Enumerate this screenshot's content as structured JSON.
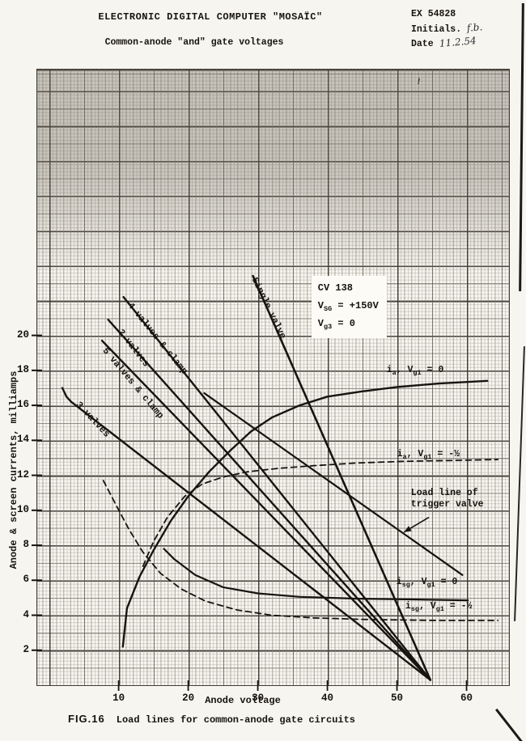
{
  "header": {
    "title": "ELECTRONIC DIGITAL COMPUTER \"MOSAÏC\"",
    "subtitle": "Common-anode \"and\" gate voltages",
    "ref_number": "EX 54828",
    "initials_label": "Initials.",
    "initials_value": "f.b.",
    "date_label": "Date",
    "date_value": "11.2.54"
  },
  "caption": {
    "fig": "FIG.16",
    "text": "Load lines for common-anode gate circuits"
  },
  "artifacts": {
    "ink_mark": "!"
  },
  "chart_data": {
    "type": "line",
    "title": "Load lines for common-anode gate circuits",
    "xlabel": "Anode voltage",
    "ylabel": "Anode & screen currents, milliamps",
    "x_range": [
      -1.7,
      66.1
    ],
    "y_range": [
      0,
      35.2
    ],
    "x_ticks": [
      10,
      20,
      30,
      40,
      50,
      60
    ],
    "y_ticks": [
      2,
      4,
      6,
      8,
      10,
      12,
      14,
      16,
      18,
      20
    ],
    "grid": "fine graph paper, bold every 10 V and 2 mA",
    "legend_position": "labels drawn on curves",
    "ink_color": "#17140f",
    "load_line_convergence_point": [
      54.8,
      0.3
    ],
    "series": [
      {
        "id": "single-valve",
        "label": "Single valve",
        "style": "solid",
        "width": 2.6,
        "points": [
          [
            29.3,
            23.4
          ],
          [
            54.8,
            0.3
          ]
        ]
      },
      {
        "id": "four-valves-clamp",
        "label": "4 valves & clamp",
        "style": "solid",
        "width": 2.4,
        "points": [
          [
            10.7,
            22.2
          ],
          [
            54.8,
            0.3
          ]
        ]
      },
      {
        "id": "two-valves",
        "label": "2 valves",
        "style": "solid",
        "width": 2.4,
        "points": [
          [
            8.5,
            20.9
          ],
          [
            54.8,
            0.3
          ]
        ]
      },
      {
        "id": "five-valves-clamp",
        "label": "5 valves & clamp",
        "style": "solid",
        "width": 2.4,
        "points": [
          [
            7.6,
            19.7
          ],
          [
            54.8,
            0.3
          ]
        ]
      },
      {
        "id": "three-valves",
        "label": "3 valves",
        "style": "solid",
        "width": 2.4,
        "points": [
          [
            1.9,
            17.0
          ],
          [
            2.5,
            16.5
          ],
          [
            3.2,
            16.2
          ],
          [
            54.8,
            0.3
          ]
        ]
      },
      {
        "id": "trigger-load-line",
        "label": "Load line of trigger valve",
        "style": "solid",
        "width": 2.2,
        "points": [
          [
            22.3,
            16.7
          ],
          [
            59.4,
            6.3
          ]
        ]
      },
      {
        "id": "ia-vg1-0",
        "label": "ia, Vg1 = 0",
        "style": "solid",
        "width": 2.4,
        "points": [
          [
            10.6,
            2.2
          ],
          [
            11.2,
            4.4
          ],
          [
            13,
            6.2
          ],
          [
            15,
            7.7
          ],
          [
            17.5,
            9.4
          ],
          [
            20,
            10.8
          ],
          [
            23,
            12.2
          ],
          [
            26,
            13.4
          ],
          [
            29,
            14.5
          ],
          [
            32,
            15.3
          ],
          [
            36,
            16.0
          ],
          [
            40,
            16.5
          ],
          [
            45,
            16.8
          ],
          [
            50,
            17.05
          ],
          [
            56,
            17.25
          ],
          [
            63,
            17.4
          ]
        ]
      },
      {
        "id": "ia-vg1-minus-half",
        "label": "ia, Vg1 = -1/2",
        "style": "dashed",
        "width": 1.8,
        "points": [
          [
            13.5,
            6.8
          ],
          [
            15,
            8.2
          ],
          [
            17,
            9.6
          ],
          [
            19.5,
            10.8
          ],
          [
            22,
            11.5
          ],
          [
            25,
            11.9
          ],
          [
            28.5,
            12.2
          ],
          [
            33,
            12.4
          ],
          [
            38,
            12.55
          ],
          [
            44,
            12.7
          ],
          [
            51,
            12.8
          ],
          [
            58,
            12.85
          ],
          [
            64.5,
            12.9
          ]
        ]
      },
      {
        "id": "isg-vg1-0",
        "label": "isg, Vg1 = 0",
        "style": "solid",
        "width": 2.2,
        "points": [
          [
            16.5,
            7.8
          ],
          [
            18,
            7.2
          ],
          [
            21,
            6.3
          ],
          [
            25,
            5.6
          ],
          [
            30,
            5.25
          ],
          [
            36,
            5.05
          ],
          [
            44,
            4.95
          ],
          [
            53,
            4.9
          ],
          [
            60.2,
            4.85
          ]
        ]
      },
      {
        "id": "isg-vg1-minus-half",
        "label": "isg, Vg1 = -1/2",
        "style": "dashed",
        "width": 1.8,
        "points": [
          [
            7.8,
            11.7
          ],
          [
            9.5,
            10.4
          ],
          [
            11.5,
            8.9
          ],
          [
            13.5,
            7.6
          ],
          [
            16,
            6.4
          ],
          [
            19,
            5.5
          ],
          [
            22.5,
            4.8
          ],
          [
            27,
            4.3
          ],
          [
            32,
            4.0
          ],
          [
            38,
            3.85
          ],
          [
            46,
            3.75
          ],
          [
            56,
            3.7
          ],
          [
            64.5,
            3.7
          ]
        ]
      }
    ],
    "labels": [
      {
        "id": "single-valve",
        "at": [
          29.3,
          23.6
        ],
        "angle": 64,
        "lines": [
          [
            [
              "Single valve",
              0
            ]
          ]
        ]
      },
      {
        "id": "four-valves-clamp",
        "at": [
          11.4,
          22.1
        ],
        "angle": 51,
        "lines": [
          [
            [
              "4 valves & clamp",
              0
            ]
          ]
        ]
      },
      {
        "id": "two-valves",
        "at": [
          10.0,
          20.6
        ],
        "angle": 52,
        "lines": [
          [
            [
              "2 valves",
              0
            ]
          ]
        ]
      },
      {
        "id": "five-valves-clamp",
        "at": [
          7.8,
          19.5
        ],
        "angle": 50,
        "lines": [
          [
            [
              "5 valves & clamp",
              0
            ]
          ]
        ]
      },
      {
        "id": "three-valves",
        "at": [
          3.95,
          16.4
        ],
        "angle": 47,
        "lines": [
          [
            [
              "3 valves",
              0
            ]
          ]
        ]
      },
      {
        "id": "tube-conditions",
        "at": [
          37.7,
          23.4
        ],
        "angle": 0,
        "box": true,
        "lines": [
          [
            [
              "CV 138",
              0
            ]
          ],
          [
            [
              "V",
              0
            ],
            [
              "SG",
              1
            ],
            [
              " = +150V",
              0
            ]
          ],
          [
            [
              "V",
              0
            ],
            [
              "g3",
              1
            ],
            [
              " =  0",
              0
            ]
          ]
        ]
      },
      {
        "id": "ia-vg1-0",
        "at": [
          48.5,
          18.3
        ],
        "angle": 0,
        "lines": [
          [
            [
              "i",
              0
            ],
            [
              "a",
              1
            ],
            [
              ", V",
              0
            ],
            [
              "g1",
              1
            ],
            [
              " = 0",
              0
            ]
          ]
        ]
      },
      {
        "id": "ia-vg1-minus-half",
        "at": [
          50.0,
          13.5
        ],
        "angle": 0,
        "lines": [
          [
            [
              "i",
              0
            ],
            [
              "a",
              1
            ],
            [
              ", V",
              0
            ],
            [
              "g1",
              1
            ],
            [
              " = -½",
              0
            ]
          ]
        ]
      },
      {
        "id": "trigger-load-line",
        "at": [
          52.0,
          11.3
        ],
        "angle": 0,
        "lines": [
          [
            [
              "Load line of",
              0
            ]
          ],
          [
            [
              "trigger valve",
              0
            ]
          ]
        ]
      },
      {
        "id": "isg-vg1-0",
        "at": [
          49.9,
          6.2
        ],
        "angle": 0,
        "lines": [
          [
            [
              "i",
              0
            ],
            [
              "sg",
              1
            ],
            [
              ", V",
              0
            ],
            [
              "g1",
              1
            ],
            [
              " = 0",
              0
            ]
          ]
        ]
      },
      {
        "id": "isg-vg1-minus-half",
        "at": [
          51.2,
          4.8
        ],
        "angle": 0,
        "lines": [
          [
            [
              "i",
              0
            ],
            [
              "sg",
              1
            ],
            [
              ", V",
              0
            ],
            [
              "g1",
              1
            ],
            [
              " = -½",
              0
            ]
          ]
        ]
      }
    ],
    "arrow": {
      "from": [
        54.6,
        9.6
      ],
      "to": [
        51.0,
        8.75
      ]
    }
  }
}
